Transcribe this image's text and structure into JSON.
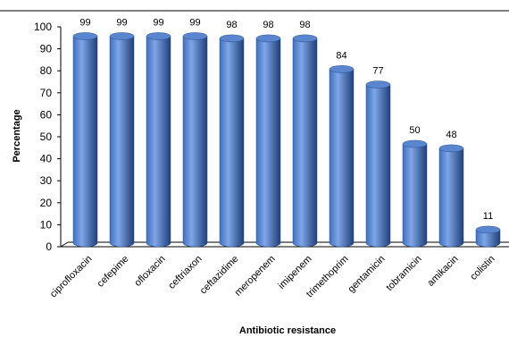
{
  "chart_data": {
    "type": "bar",
    "categories": [
      "ciprofloxacin",
      "cefepime",
      "ofloxacin",
      "ceftriaxon",
      "ceftazidime",
      "meropenem",
      "imipenem",
      "trimethoprim",
      "gentamicin",
      "tobramicin",
      "amikacin",
      "colistin"
    ],
    "values": [
      99,
      99,
      99,
      99,
      98,
      98,
      98,
      84,
      77,
      50,
      48,
      11
    ],
    "data_labels": [
      "99",
      "99",
      "99",
      "99",
      "98",
      "98",
      "98",
      "84",
      "77",
      "50",
      "48",
      "11"
    ],
    "y_ticks": [
      "0",
      "10",
      "20",
      "30",
      "40",
      "50",
      "60",
      "70",
      "80",
      "90",
      "100"
    ],
    "xlabel": "Antibiotic resistance",
    "ylabel": "Percentage",
    "ylim": [
      0,
      100
    ],
    "grid": false,
    "legend": "none",
    "bar_color": "#3f6fbf",
    "bar_highlight": "#7fa6e6",
    "bar_shadow": "#1f3f7a"
  }
}
